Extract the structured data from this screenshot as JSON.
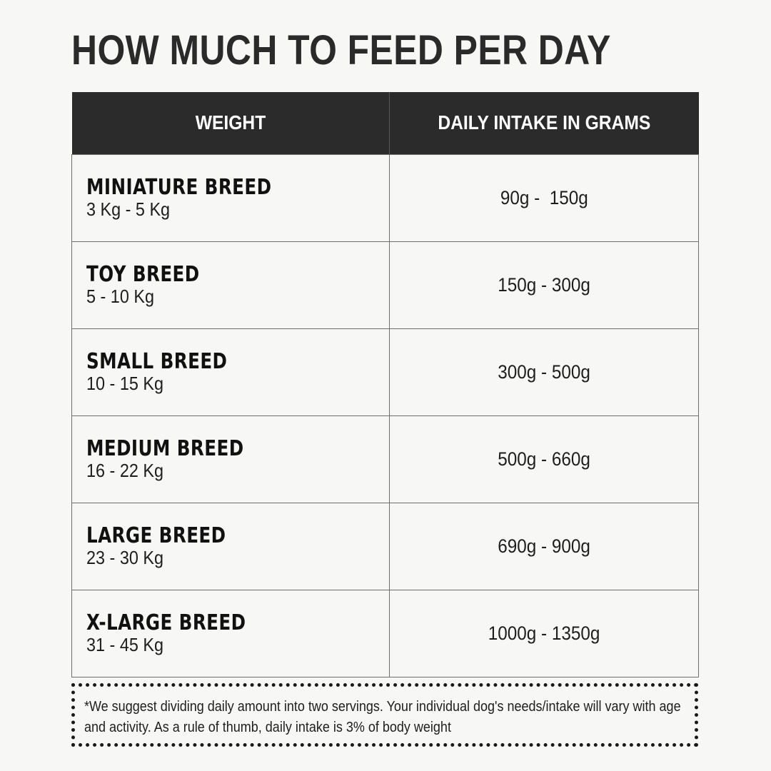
{
  "title": "HOW MUCH TO FEED PER DAY",
  "table": {
    "headers": [
      "WEIGHT",
      "DAILY INTAKE IN GRAMS"
    ],
    "rows": [
      {
        "breed": "MINIATURE BREED",
        "range": "3 Kg - 5 Kg",
        "intake": "90g -  150g"
      },
      {
        "breed": "TOY BREED",
        "range": "5 - 10 Kg",
        "intake": "150g - 300g"
      },
      {
        "breed": "SMALL BREED",
        "range": "10 - 15 Kg",
        "intake": "300g - 500g"
      },
      {
        "breed": "MEDIUM BREED",
        "range": "16 - 22 Kg",
        "intake": "500g - 660g"
      },
      {
        "breed": "LARGE BREED",
        "range": "23 - 30 Kg",
        "intake": "690g - 900g"
      },
      {
        "breed": "X-LARGE BREED",
        "range": "31 - 45 Kg",
        "intake": "1000g - 1350g"
      }
    ]
  },
  "footnote": "*We suggest dividing daily amount into two servings. Your individual dog's needs/intake will vary with age and activity. As a rule of thumb, daily intake is 3% of body weight",
  "colors": {
    "background": "#f7f7f5",
    "header_background": "#2b2b2b",
    "header_text": "#ffffff",
    "text": "#1e1e1e"
  }
}
